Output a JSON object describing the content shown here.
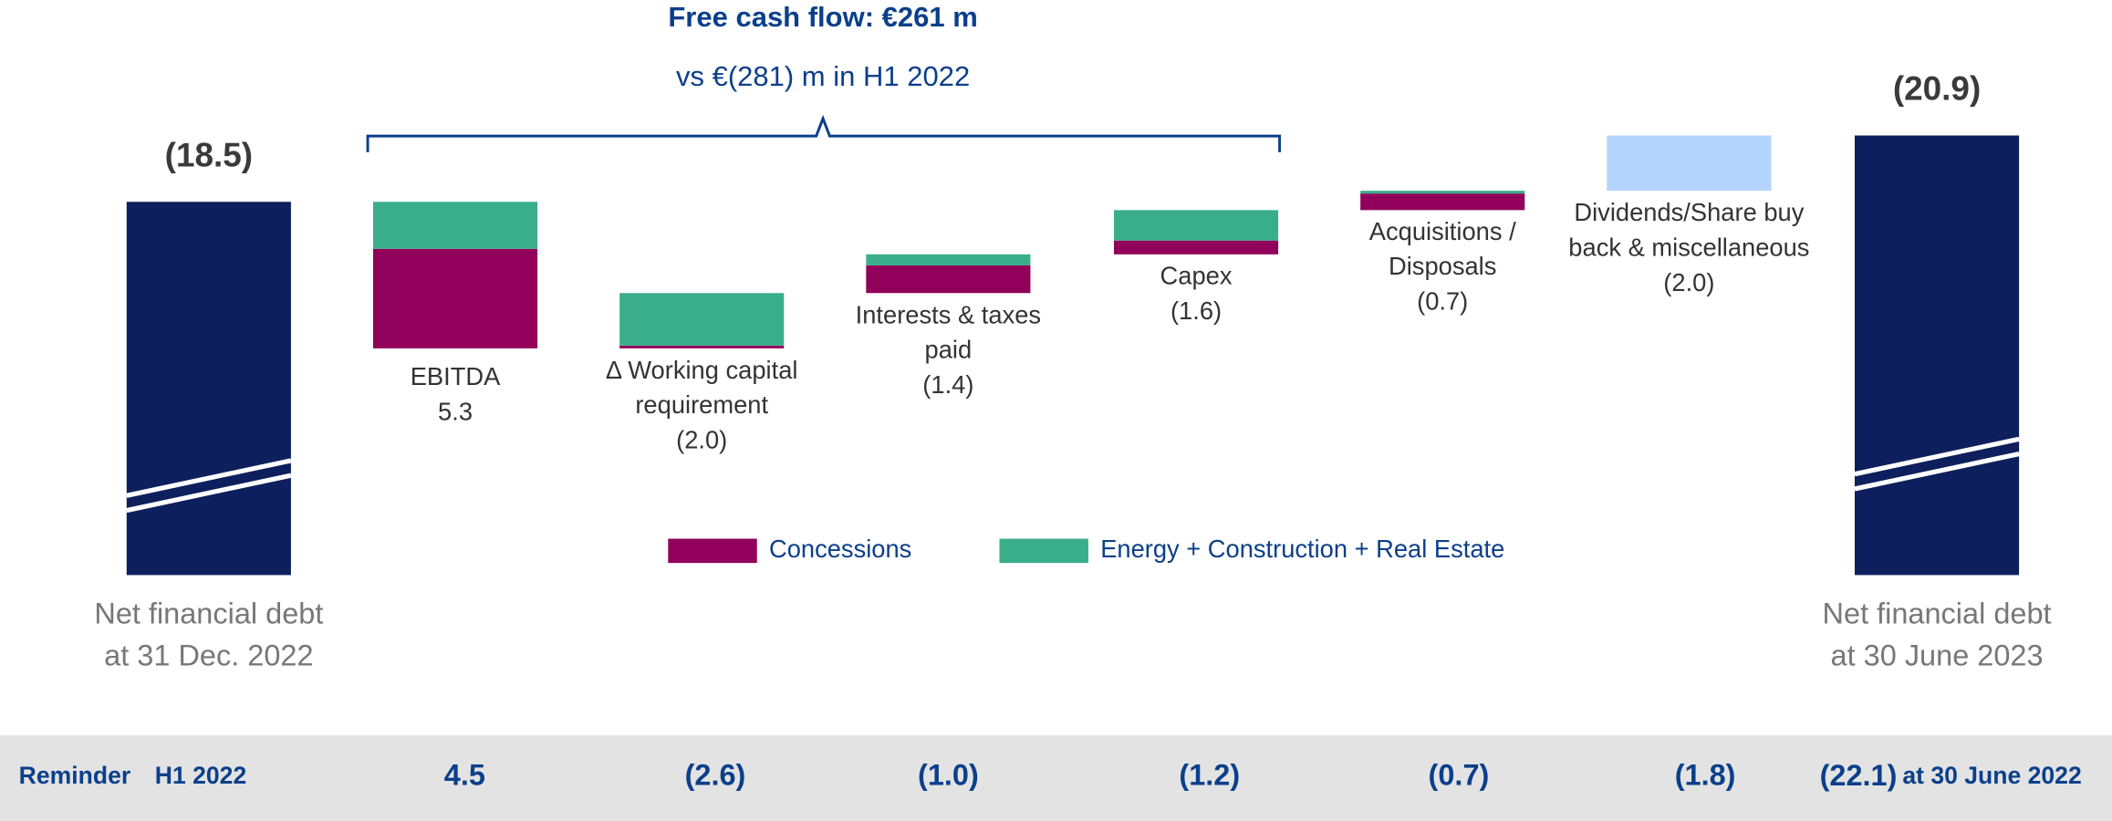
{
  "chart_data": {
    "type": "waterfall",
    "title": "Free cash flow: €261 m",
    "subtitle": "vs €(281) m in H1 2022",
    "start": {
      "label": [
        "Net financial debt",
        "at 31 Dec. 2022"
      ],
      "value": -18.5,
      "value_label": "(18.5)"
    },
    "end": {
      "label": [
        "Net financial debt",
        "at 30 June 2023"
      ],
      "value": -20.9,
      "value_label": "(20.9)"
    },
    "total_color": "#0d1f5c",
    "categories": [
      "EBITDA",
      "Δ Working capital requirement",
      "Interests & taxes paid",
      "Capex",
      "Acquisitions / Disposals",
      "Dividends/Share buy back & miscellaneous"
    ],
    "values": [
      5.3,
      -2.0,
      -1.4,
      -1.6,
      -0.7,
      -2.0
    ],
    "value_labels": [
      "5.3",
      "(2.0)",
      "(1.4)",
      "(1.6)",
      "(0.7)",
      "(2.0)"
    ],
    "color": "#b3d4fc",
    "series": [
      {
        "name": "Concessions",
        "color": "#91005a",
        "values": [
          3.6,
          -0.1,
          -1.0,
          -0.5,
          -0.6,
          null
        ]
      },
      {
        "name": "Energy + Construction + Real Estate",
        "color": "#3aae8b",
        "values": [
          1.7,
          -1.9,
          -0.4,
          -1.1,
          -0.1,
          null
        ]
      }
    ],
    "ylim": [
      -5,
      -25.8
    ],
    "reminder": {
      "label": "Reminder",
      "period": "H1 2022",
      "values": [
        "4.5",
        "(2.6)",
        "(1.0)",
        "(1.2)",
        "(0.7)",
        "(1.8)"
      ],
      "end_value": "(22.1)",
      "end_note": "at 30 June 2022"
    }
  }
}
